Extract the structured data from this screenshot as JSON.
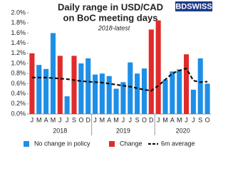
{
  "chart_data": {
    "type": "bar",
    "title_lines": [
      "Daily range in USD/CAD",
      "on BoC meeting days"
    ],
    "subtitle": "2018-latest",
    "logo": "BDSWISS",
    "categories": [
      "J",
      "M",
      "A",
      "M",
      "J",
      "J",
      "S",
      "O",
      "D",
      "J",
      "M",
      "A",
      "M",
      "J",
      "J",
      "S",
      "O",
      "D",
      "J",
      "M",
      "A",
      "M",
      "J",
      "J",
      "S",
      "O"
    ],
    "x_groups": [
      "2018",
      "2019",
      "2020"
    ],
    "series": [
      {
        "name": "No change in policy",
        "color": "#1e8fe6",
        "type": "bar",
        "values": [
          null,
          0.97,
          0.89,
          1.6,
          null,
          0.35,
          null,
          1.0,
          1.1,
          0.78,
          0.8,
          0.75,
          0.5,
          0.63,
          1.02,
          0.8,
          0.9,
          null,
          null,
          0.68,
          0.84,
          0.88,
          null,
          0.48,
          1.1,
          0.6
        ]
      },
      {
        "name": "Change",
        "color": "#e02b2b",
        "type": "bar",
        "values": [
          1.2,
          null,
          null,
          null,
          1.15,
          null,
          1.15,
          null,
          null,
          null,
          null,
          null,
          null,
          null,
          null,
          null,
          null,
          1.67,
          1.85,
          null,
          null,
          null,
          1.18,
          null,
          null,
          null
        ]
      },
      {
        "name": "6m average",
        "color": "#111111",
        "type": "line",
        "values": [
          0.72,
          0.72,
          0.72,
          0.71,
          0.7,
          0.69,
          0.67,
          0.65,
          0.64,
          0.63,
          0.62,
          0.6,
          0.58,
          0.56,
          0.54,
          0.51,
          0.48,
          0.46,
          0.56,
          0.68,
          0.8,
          0.86,
          0.9,
          0.66,
          0.63,
          0.64
        ]
      }
    ],
    "ylim": [
      0,
      2.0
    ],
    "yticks": [
      {
        "value": 0,
        "label": "0.0%"
      },
      {
        "value": 0.2,
        "label": "0.2%"
      },
      {
        "value": 0.4,
        "label": "0.4%"
      },
      {
        "value": 0.6,
        "label": "0.6%"
      },
      {
        "value": 0.8,
        "label": "0.8%"
      },
      {
        "value": 1.0,
        "label": "1.0%"
      },
      {
        "value": 1.2,
        "label": "1.2%"
      },
      {
        "value": 1.4,
        "label": "1.4%"
      },
      {
        "value": 1.6,
        "label": "1.6%"
      },
      {
        "value": 1.8,
        "label": "1.8%"
      },
      {
        "value": 2.0,
        "label": "2.0%"
      }
    ]
  }
}
